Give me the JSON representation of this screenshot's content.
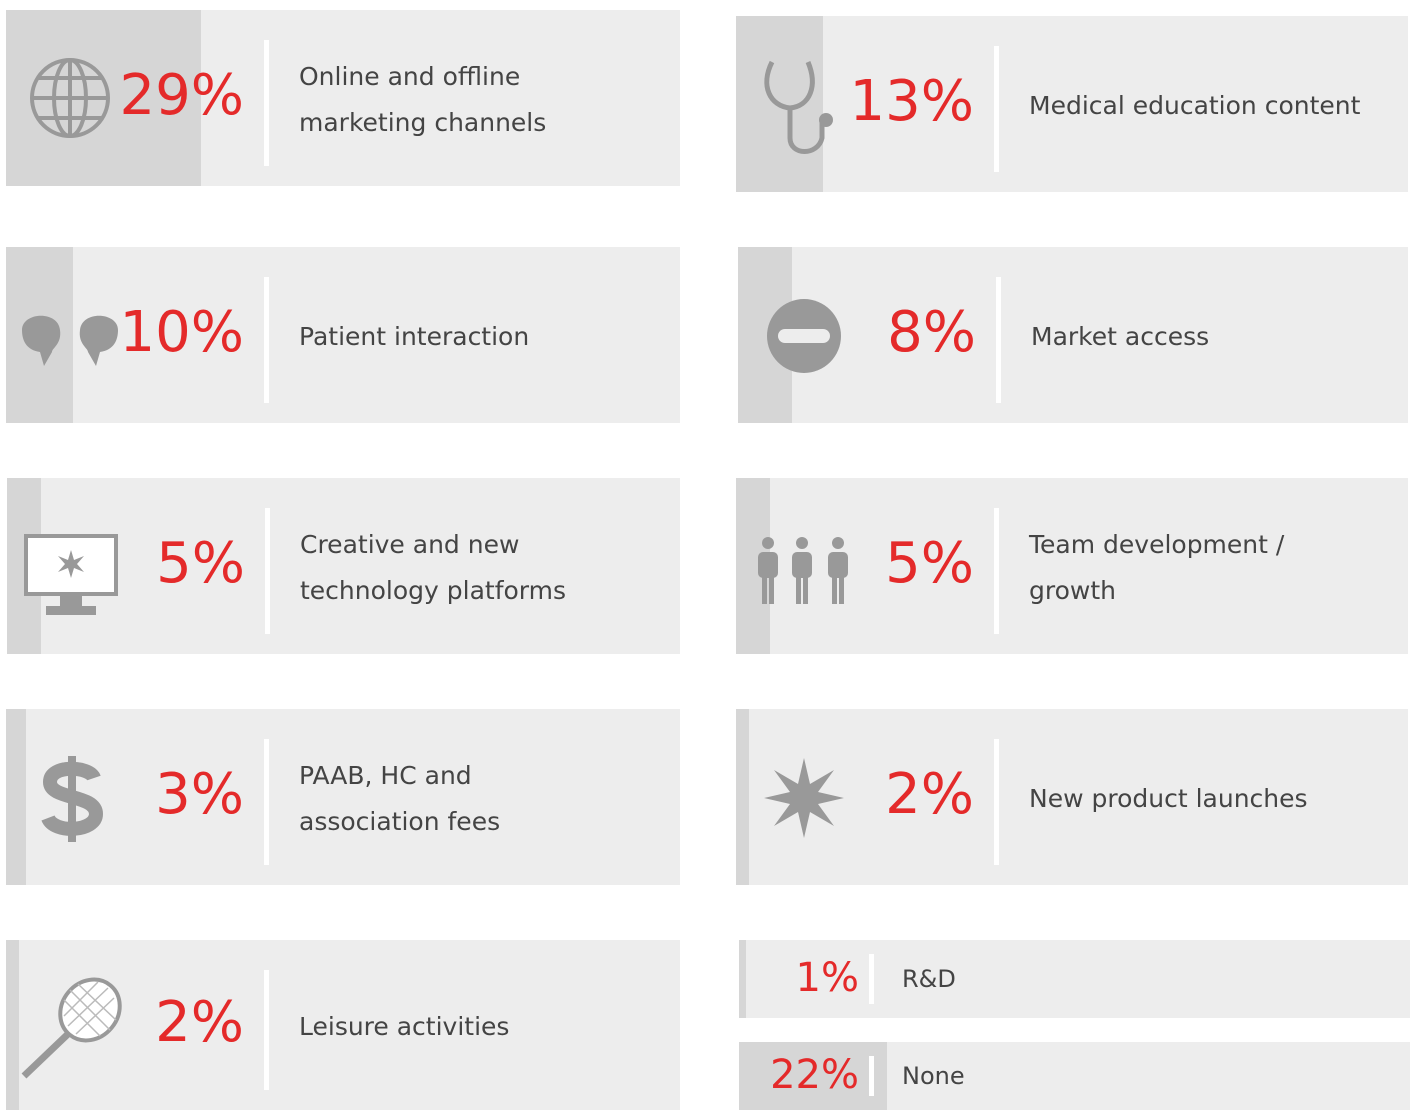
{
  "chart_data": {
    "type": "bar",
    "categories": [
      "Online and offline marketing channels",
      "Medical education content",
      "Patient interaction",
      "Market access",
      "Creative and new technology platforms",
      "Team development / growth",
      "PAAB, HC and association fees",
      "New product launches",
      "Leisure activities",
      "R&D",
      "None"
    ],
    "values": [
      29,
      13,
      10,
      8,
      5,
      5,
      3,
      2,
      2,
      1,
      22
    ],
    "value_labels": [
      "29%",
      "13%",
      "10%",
      "8%",
      "5%",
      "5%",
      "3%",
      "2%",
      "2%",
      "1%",
      "22%"
    ],
    "color": "#d6d6d6",
    "xlim": [
      0,
      100
    ]
  }
}
